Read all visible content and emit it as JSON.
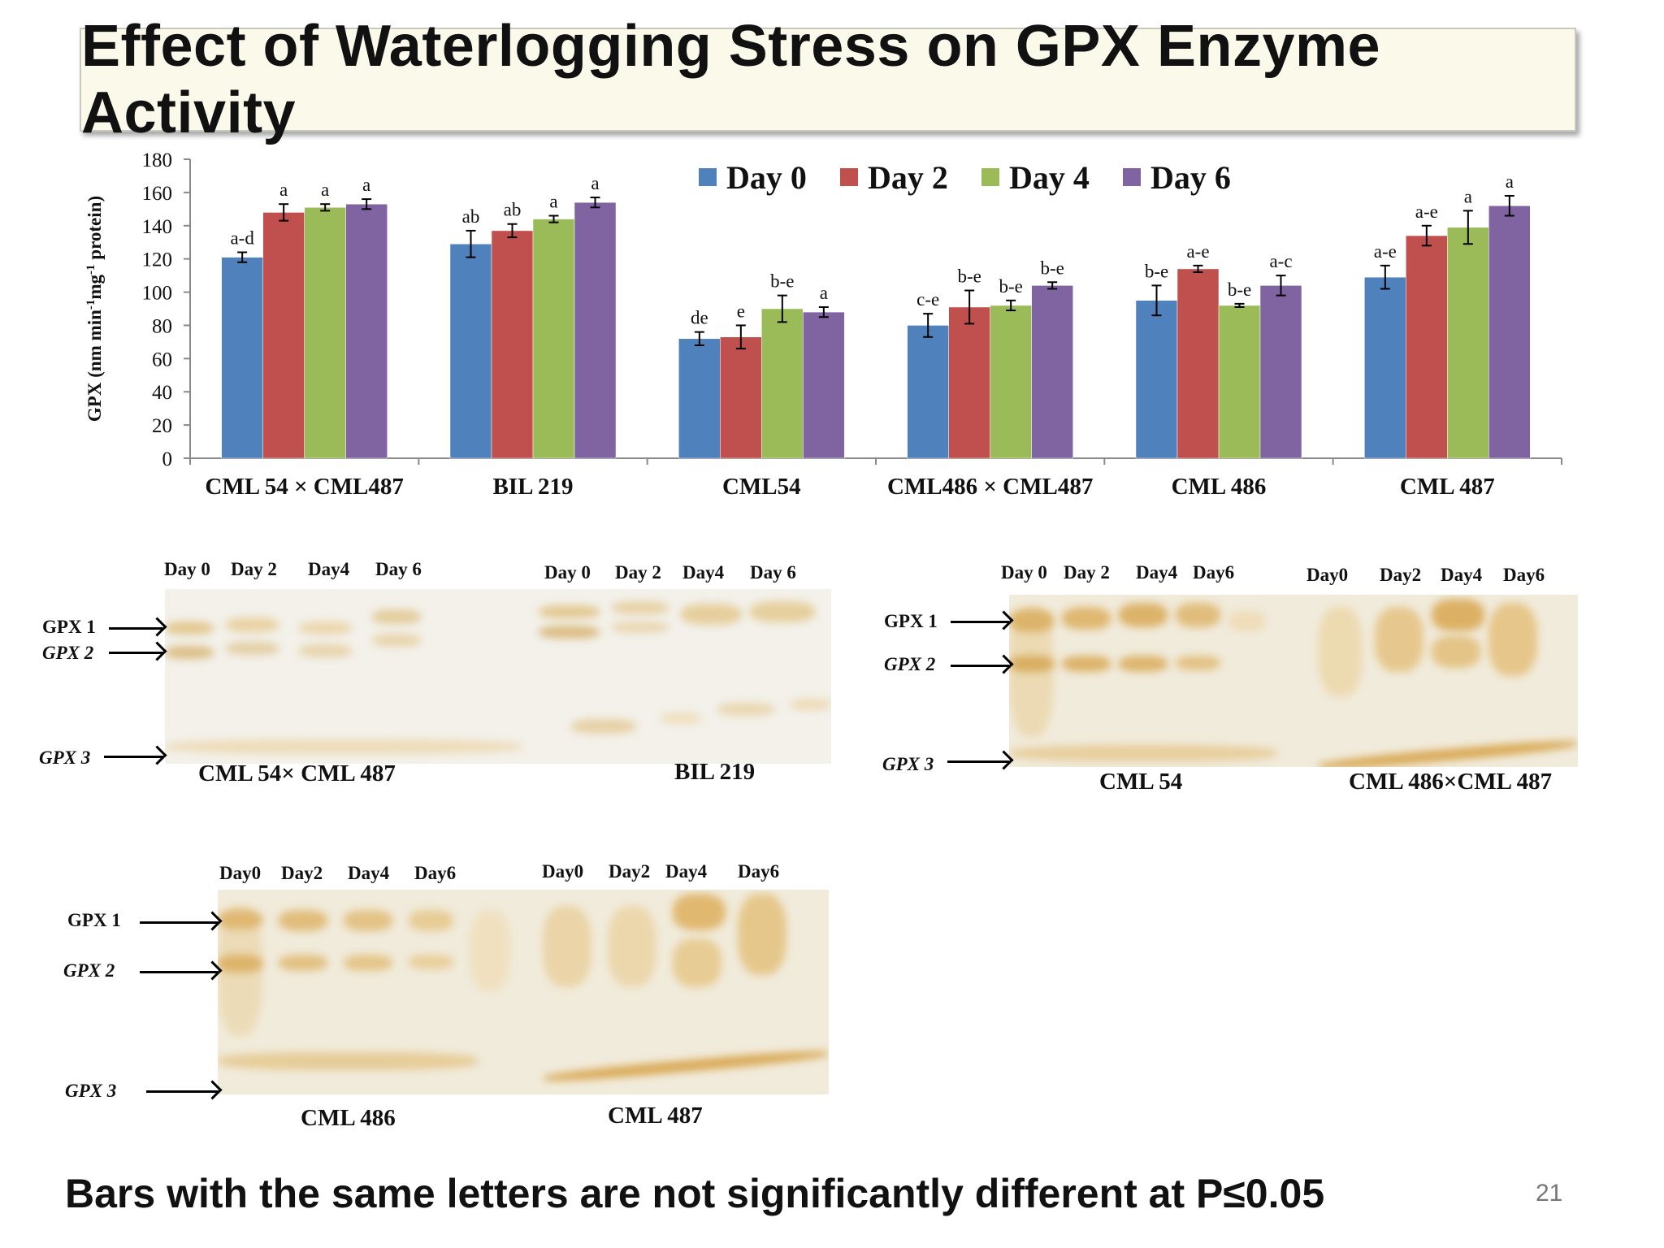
{
  "title": "Effect of Waterlogging Stress on GPX Enzyme Activity",
  "footnote": "Bars with the same letters are not significantly different at P≤0.05",
  "slide_number": "21",
  "chart_data": {
    "type": "bar",
    "ylabel_parts": [
      "GPX (nm min",
      "-1",
      "mg",
      "-1",
      " protein)"
    ],
    "ylim": [
      0,
      180
    ],
    "yticks": [
      "0",
      "20",
      "40",
      "60",
      "80",
      "100",
      "120",
      "140",
      "160",
      "180"
    ],
    "legend_position": "top-right",
    "categories": [
      "CML 54 × CML487",
      "BIL 219",
      "CML54",
      "CML486 × CML487",
      "CML 486",
      "CML 487"
    ],
    "series": [
      {
        "name": "Day 0",
        "color": "#4f81bd",
        "values": [
          121,
          129,
          72,
          80,
          95,
          109
        ],
        "errors": [
          3,
          8,
          4,
          7,
          9,
          7
        ],
        "letters": [
          "a-d",
          "ab",
          "de",
          "c-e",
          "b-e",
          "a-e"
        ]
      },
      {
        "name": "Day 2",
        "color": "#c0504d",
        "values": [
          148,
          137,
          73,
          91,
          114,
          134
        ],
        "errors": [
          5,
          4,
          7,
          10,
          2,
          6
        ],
        "letters": [
          "a",
          "ab",
          "e",
          "b-e",
          "a-e",
          "a-e"
        ]
      },
      {
        "name": "Day 4",
        "color": "#9bbb59",
        "values": [
          151,
          144,
          90,
          92,
          92,
          139
        ],
        "errors": [
          2,
          2,
          8,
          3,
          1,
          10
        ],
        "letters": [
          "a",
          "a",
          "b-e",
          "b-e",
          "b-e",
          "a"
        ]
      },
      {
        "name": "Day 6",
        "color": "#8064a2",
        "values": [
          153,
          154,
          88,
          104,
          104,
          152
        ],
        "errors": [
          3,
          3,
          3,
          2,
          6,
          6
        ],
        "letters": [
          "a",
          "a",
          "a",
          "b-e",
          "a-c",
          "a"
        ]
      }
    ]
  },
  "gels": [
    {
      "id": "gel1",
      "captions": [
        "CML 54× CML 487",
        "BIL 219"
      ],
      "lanes": [
        "Day 0",
        "Day 2",
        "Day4",
        "Day 6",
        "Day 0",
        "Day 2",
        "Day4",
        "Day 6"
      ],
      "markers": [
        "GPX 1",
        "GPX 2",
        "GPX 3"
      ]
    },
    {
      "id": "gel2",
      "captions": [
        "CML 54",
        "CML 486×CML 487"
      ],
      "lanes": [
        "Day 0",
        "Day 2",
        "Day4",
        "Day6",
        "Day0",
        "Day2",
        "Day4",
        "Day6"
      ],
      "markers": [
        "GPX 1",
        "GPX 2",
        "GPX 3"
      ]
    },
    {
      "id": "gel3",
      "captions": [
        "CML 486",
        "CML 487"
      ],
      "lanes": [
        "Day0",
        "Day2",
        "Day4",
        "Day6",
        "Day0",
        "Day2",
        "Day4",
        "Day6"
      ],
      "markers": [
        "GPX 1",
        "GPX 2",
        "GPX 3"
      ]
    }
  ]
}
